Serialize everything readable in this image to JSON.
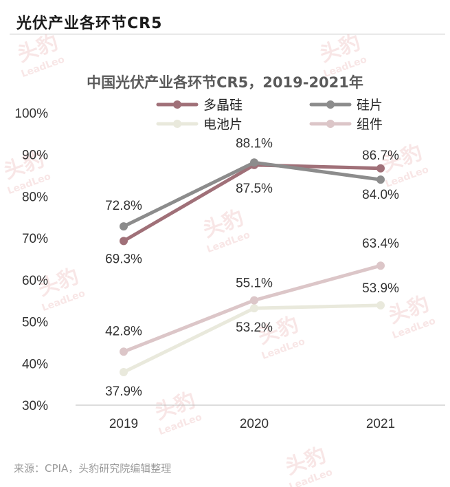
{
  "header": {
    "title": "光伏产业各环节CR5"
  },
  "source": "来源：CPIA，头豹研究院编辑整理",
  "watermark": {
    "brand": "头豹",
    "sub": "LeadLeo"
  },
  "chart_data": {
    "type": "line",
    "title": "中国光伏产业各环节CR5，2019-2021年",
    "x": [
      "2019",
      "2020",
      "2021"
    ],
    "ylim": [
      30,
      100
    ],
    "yticks": [
      "30%",
      "40%",
      "50%",
      "60%",
      "70%",
      "80%",
      "90%",
      "100%"
    ],
    "grid": false,
    "legend_position": "top",
    "series": [
      {
        "name": "多晶硅",
        "color": "#a07078",
        "values": [
          69.3,
          87.5,
          86.7
        ],
        "labels": [
          "69.3%",
          "87.5%",
          "86.7%"
        ]
      },
      {
        "name": "硅片",
        "color": "#8c8c8c",
        "values": [
          72.8,
          88.1,
          84.0
        ],
        "labels": [
          "72.8%",
          "88.1%",
          "84.0%"
        ]
      },
      {
        "name": "电池片",
        "color": "#e9e9dc",
        "values": [
          37.9,
          53.2,
          53.9
        ],
        "labels": [
          "37.9%",
          "53.2%",
          "53.9%"
        ]
      },
      {
        "name": "组件",
        "color": "#dcc6c8",
        "values": [
          42.8,
          55.1,
          63.4
        ],
        "labels": [
          "42.8%",
          "55.1%",
          "63.4%"
        ]
      }
    ]
  }
}
